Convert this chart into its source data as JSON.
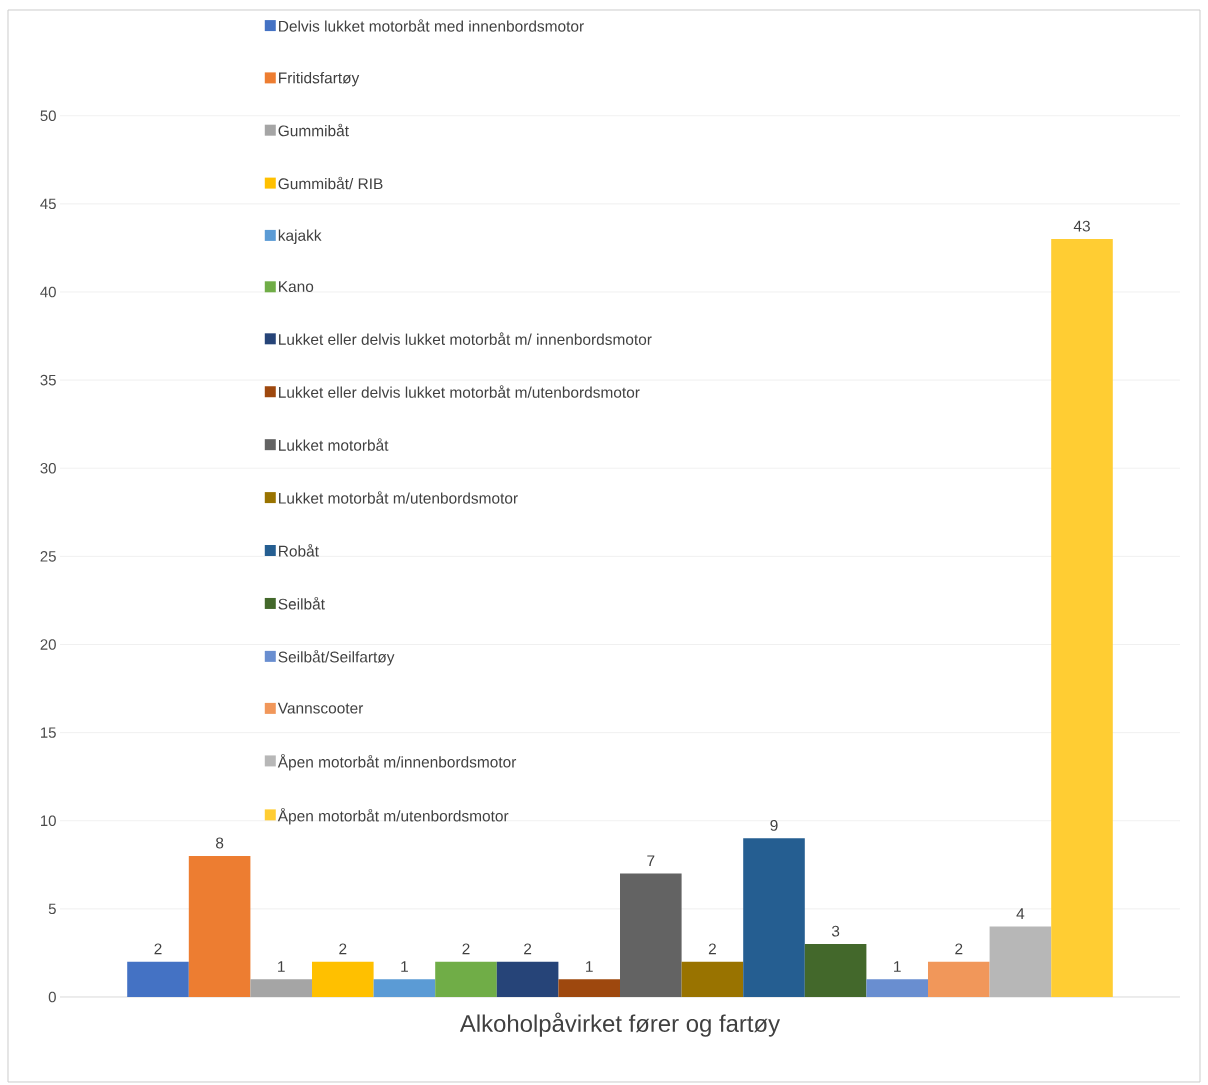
{
  "chart_data": {
    "type": "bar",
    "categories": [
      "Alkoholpåvirket  fører og fartøy"
    ],
    "ylim": [
      0,
      56
    ],
    "yticks": [
      0,
      5,
      10,
      15,
      20,
      25,
      30,
      35,
      40,
      45,
      50
    ],
    "grid": "y",
    "legend": "top left",
    "data_labels": true,
    "series": [
      {
        "name": "Delvis lukket motorbåt med innenbordsmotor",
        "color": "#4472c4",
        "values": [
          2
        ]
      },
      {
        "name": "Fritidsfartøy",
        "color": "#ed7d31",
        "values": [
          8
        ]
      },
      {
        "name": "Gummibåt",
        "color": "#a5a5a5",
        "values": [
          1
        ]
      },
      {
        "name": "Gummibåt/ RIB",
        "color": "#ffc000",
        "values": [
          2
        ]
      },
      {
        "name": "kajakk",
        "color": "#5b9bd5",
        "values": [
          1
        ]
      },
      {
        "name": "Kano",
        "color": "#70ad47",
        "values": [
          2
        ]
      },
      {
        "name": "Lukket eller delvis lukket motorbåt m/ innenbordsmotor",
        "color": "#264478",
        "values": [
          2
        ]
      },
      {
        "name": "Lukket eller delvis lukket motorbåt m/utenbordsmotor",
        "color": "#9e480e",
        "values": [
          1
        ]
      },
      {
        "name": "Lukket motorbåt",
        "color": "#636363",
        "values": [
          7
        ]
      },
      {
        "name": "Lukket motorbåt m/utenbordsmotor",
        "color": "#997300",
        "values": [
          2
        ]
      },
      {
        "name": "Robåt",
        "color": "#255e91",
        "values": [
          9
        ]
      },
      {
        "name": "Seilbåt",
        "color": "#43682b",
        "values": [
          3
        ]
      },
      {
        "name": "Seilbåt/Seilfartøy",
        "color": "#698ed0",
        "values": [
          1
        ]
      },
      {
        "name": "Vannscooter",
        "color": "#f1975a",
        "values": [
          2
        ]
      },
      {
        "name": "Åpen motorbåt m/innenbordsmotor",
        "color": "#b7b7b7",
        "values": [
          4
        ]
      },
      {
        "name": "Åpen motorbåt m/utenbordsmotor",
        "color": "#ffcd33",
        "values": [
          43
        ]
      }
    ]
  }
}
